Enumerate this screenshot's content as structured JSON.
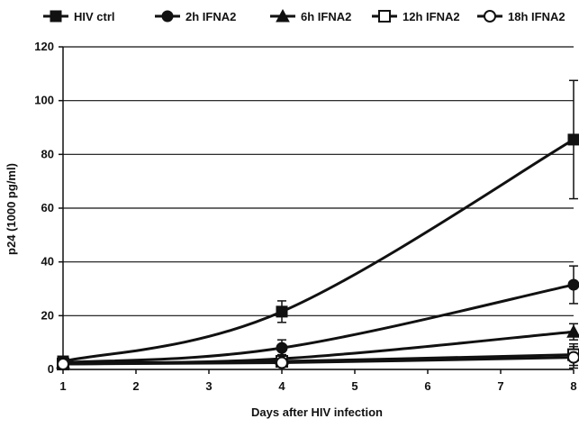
{
  "chart_data": {
    "type": "line",
    "title": "",
    "xlabel": "Days after HIV infection",
    "ylabel": "p24 (1000 pg/ml)",
    "x_ticks": [
      "1",
      "2",
      "3",
      "4",
      "5",
      "6",
      "7",
      "8"
    ],
    "y_ticks": [
      "0",
      "20",
      "40",
      "60",
      "80",
      "100",
      "120"
    ],
    "xlim": [
      1,
      8
    ],
    "ylim": [
      0,
      120
    ],
    "grid": "horizontal",
    "legend_position": "top",
    "series": [
      {
        "name": "HIV ctrl",
        "marker": "square-filled",
        "color": "#111111",
        "points": [
          {
            "x": 1,
            "y": 3,
            "error": 0
          },
          {
            "x": 4,
            "y": 21.5,
            "error": 4
          },
          {
            "x": 8,
            "y": 85.5,
            "error": 22
          }
        ]
      },
      {
        "name": "2h IFNA2",
        "marker": "circle-filled",
        "color": "#111111",
        "points": [
          {
            "x": 1,
            "y": 2.5,
            "error": 0
          },
          {
            "x": 4,
            "y": 8,
            "error": 3
          },
          {
            "x": 8,
            "y": 31.5,
            "error": 7
          }
        ]
      },
      {
        "name": "6h IFNA2",
        "marker": "triangle-filled",
        "color": "#111111",
        "points": [
          {
            "x": 1,
            "y": 2.5,
            "error": 0
          },
          {
            "x": 4,
            "y": 4,
            "error": 1.5
          },
          {
            "x": 8,
            "y": 14,
            "error": 3
          }
        ]
      },
      {
        "name": "12h IFNA2",
        "marker": "square-open",
        "color": "#111111",
        "points": [
          {
            "x": 1,
            "y": 2,
            "error": 0
          },
          {
            "x": 4,
            "y": 3,
            "error": 1
          },
          {
            "x": 8,
            "y": 5.5,
            "error": 4
          }
        ]
      },
      {
        "name": "18h IFNA2",
        "marker": "circle-open",
        "color": "#111111",
        "points": [
          {
            "x": 1,
            "y": 2,
            "error": 0
          },
          {
            "x": 4,
            "y": 2.5,
            "error": 1
          },
          {
            "x": 8,
            "y": 4.5,
            "error": 4
          }
        ]
      }
    ]
  }
}
